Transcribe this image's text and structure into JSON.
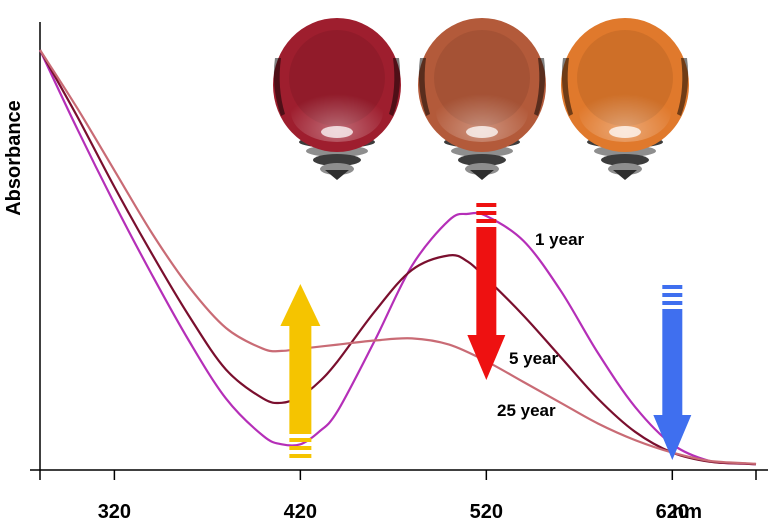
{
  "chart_data": {
    "type": "line",
    "ylabel": "Absorbance",
    "x_unit": "nm",
    "x_ticks": [
      320,
      420,
      520,
      620
    ],
    "xlim": [
      280,
      665
    ],
    "ylim": [
      0,
      1
    ],
    "grid": false,
    "legend": "none",
    "series": [
      {
        "name": "1 year",
        "color": "#b52fb8",
        "x": [
          280,
          300,
          320,
          340,
          360,
          380,
          400,
          410,
          420,
          430,
          440,
          460,
          480,
          500,
          510,
          520,
          540,
          560,
          580,
          600,
          620,
          640,
          660,
          665
        ],
        "y": [
          1.0,
          0.81,
          0.63,
          0.46,
          0.3,
          0.16,
          0.07,
          0.05,
          0.05,
          0.08,
          0.13,
          0.3,
          0.48,
          0.59,
          0.605,
          0.6,
          0.54,
          0.42,
          0.27,
          0.14,
          0.05,
          0.01,
          0.003,
          0.002
        ]
      },
      {
        "name": "5 year",
        "color": "#7a0f2e",
        "x": [
          280,
          300,
          320,
          340,
          360,
          380,
          400,
          410,
          420,
          430,
          440,
          460,
          480,
          500,
          510,
          520,
          540,
          560,
          580,
          600,
          620,
          640,
          660,
          665
        ],
        "y": [
          1.0,
          0.84,
          0.67,
          0.51,
          0.36,
          0.23,
          0.16,
          0.15,
          0.165,
          0.2,
          0.25,
          0.37,
          0.47,
          0.505,
          0.49,
          0.45,
          0.36,
          0.26,
          0.16,
          0.08,
          0.03,
          0.008,
          0.003,
          0.002
        ]
      },
      {
        "name": "25 year",
        "color": "#c96b75",
        "x": [
          280,
          300,
          320,
          340,
          360,
          380,
          400,
          410,
          420,
          440,
          460,
          480,
          500,
          520,
          540,
          560,
          580,
          600,
          620,
          640,
          660,
          665
        ],
        "y": [
          1.0,
          0.86,
          0.71,
          0.56,
          0.43,
          0.33,
          0.28,
          0.275,
          0.28,
          0.29,
          0.3,
          0.305,
          0.29,
          0.25,
          0.2,
          0.15,
          0.1,
          0.06,
          0.03,
          0.01,
          0.004,
          0.003
        ]
      }
    ],
    "arrows": [
      {
        "color": "#f5c400",
        "x": 420,
        "direction": "up"
      },
      {
        "color": "#ee1111",
        "x": 520,
        "direction": "down"
      },
      {
        "color": "#3f6fef",
        "x": 620,
        "direction": "down"
      }
    ],
    "sample_colors": [
      "#9e1e2e",
      "#b35a3a",
      "#e0792c"
    ]
  }
}
